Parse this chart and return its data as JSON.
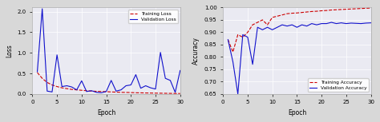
{
  "train_loss": [
    0.52,
    0.38,
    0.28,
    0.22,
    0.18,
    0.15,
    0.13,
    0.11,
    0.1,
    0.09,
    0.08,
    0.07,
    0.065,
    0.06,
    0.055,
    0.05,
    0.045,
    0.04,
    0.038,
    0.035,
    0.03,
    0.028,
    0.025,
    0.023,
    0.021,
    0.019,
    0.017,
    0.015,
    0.013,
    0.012
  ],
  "val_loss": [
    0.54,
    2.07,
    0.07,
    0.05,
    0.95,
    0.18,
    0.2,
    0.17,
    0.1,
    0.32,
    0.06,
    0.08,
    0.04,
    0.03,
    0.06,
    0.33,
    0.07,
    0.1,
    0.2,
    0.22,
    0.47,
    0.14,
    0.2,
    0.15,
    0.12,
    1.01,
    0.38,
    0.33,
    0.04,
    0.57
  ],
  "train_acc": [
    0.87,
    0.82,
    0.89,
    0.88,
    0.9,
    0.93,
    0.94,
    0.95,
    0.93,
    0.96,
    0.965,
    0.97,
    0.975,
    0.977,
    0.978,
    0.98,
    0.982,
    0.984,
    0.985,
    0.987,
    0.988,
    0.99,
    0.991,
    0.992,
    0.993,
    0.994,
    0.995,
    0.996,
    0.997,
    0.998
  ],
  "val_acc": [
    0.87,
    0.78,
    0.65,
    0.89,
    0.88,
    0.77,
    0.92,
    0.91,
    0.92,
    0.91,
    0.92,
    0.93,
    0.925,
    0.93,
    0.92,
    0.93,
    0.925,
    0.935,
    0.93,
    0.935,
    0.935,
    0.94,
    0.935,
    0.938,
    0.935,
    0.937,
    0.936,
    0.935,
    0.937,
    0.938
  ],
  "epochs": 30,
  "loss_ylim": [
    0,
    2.1
  ],
  "acc_ylim": [
    0.65,
    1.0
  ],
  "bg_color": "#d8d8d8",
  "plot_bg_color": "#eaeaf2",
  "train_color": "#cc0000",
  "val_color": "#1111cc",
  "train_loss_label": "Training Loss",
  "val_loss_label": "Validation Loss",
  "train_acc_label": "Training Accuracy",
  "val_acc_label": "Validation Accuracy",
  "xlabel": "Epoch",
  "loss_ylabel": "Loss",
  "acc_ylabel": "Accuracy"
}
